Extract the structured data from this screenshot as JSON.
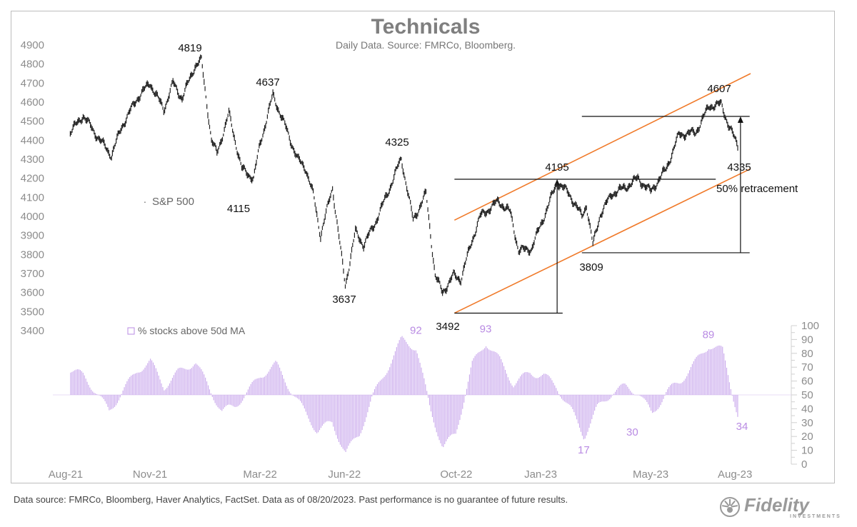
{
  "chart_data": [
    {
      "type": "line",
      "title": "Technicals",
      "subtitle": "Daily Data. Source: FMRCo, Bloomberg.",
      "series_name": "S&P 500",
      "ylim": [
        3400,
        4900
      ],
      "yticks": [
        3400,
        3500,
        3600,
        3700,
        3800,
        3900,
        4000,
        4100,
        4200,
        4300,
        4400,
        4500,
        4600,
        4700,
        4800,
        4900
      ],
      "x_ticks": [
        "Aug-21",
        "Nov-21",
        "Mar-22",
        "Jun-22",
        "Oct-22",
        "Jan-23",
        "May-23",
        "Aug-23"
      ],
      "x": [
        "2021-08-20",
        "2021-09-03",
        "2021-09-20",
        "2021-10-04",
        "2021-10-15",
        "2021-11-01",
        "2021-11-15",
        "2021-11-30",
        "2021-12-10",
        "2021-12-20",
        "2022-01-03",
        "2022-01-10",
        "2022-01-21",
        "2022-01-27",
        "2022-02-09",
        "2022-02-23",
        "2022-03-08",
        "2022-03-15",
        "2022-03-29",
        "2022-04-11",
        "2022-04-25",
        "2022-05-04",
        "2022-05-12",
        "2022-05-20",
        "2022-06-02",
        "2022-06-16",
        "2022-06-27",
        "2022-07-06",
        "2022-07-18",
        "2022-08-01",
        "2022-08-16",
        "2022-08-29",
        "2022-09-12",
        "2022-09-22",
        "2022-09-30",
        "2022-10-12",
        "2022-10-20",
        "2022-11-01",
        "2022-11-10",
        "2022-11-30",
        "2022-12-13",
        "2022-12-22",
        "2023-01-05",
        "2023-01-18",
        "2023-02-02",
        "2023-02-15",
        "2023-03-01",
        "2023-03-06",
        "2023-03-13",
        "2023-03-21",
        "2023-04-03",
        "2023-04-17",
        "2023-05-01",
        "2023-05-15",
        "2023-06-01",
        "2023-06-15",
        "2023-07-03",
        "2023-07-18",
        "2023-07-31",
        "2023-08-08",
        "2023-08-18"
      ],
      "values": [
        4440,
        4530,
        4410,
        4320,
        4470,
        4620,
        4700,
        4560,
        4700,
        4620,
        4790,
        4819,
        4400,
        4330,
        4540,
        4250,
        4200,
        4380,
        4637,
        4480,
        4300,
        4250,
        4115,
        3900,
        4150,
        3637,
        3920,
        3850,
        3960,
        4120,
        4305,
        3980,
        4120,
        3690,
        3600,
        3690,
        3670,
        3870,
        4000,
        4080,
        4020,
        3820,
        3830,
        3990,
        4180,
        4120,
        4000,
        4060,
        3850,
        4010,
        4120,
        4150,
        4200,
        4130,
        4250,
        4430,
        4440,
        4580,
        4588,
        4480,
        4370
      ],
      "annotations": [
        "4819",
        "4637",
        "4115",
        "3637",
        "4325",
        "3492",
        "4195",
        "3809",
        "4607",
        "4335",
        "50% retracement"
      ],
      "channel": {
        "upper": [
          [
            "2022-10-13",
            3980
          ],
          [
            "2023-09-01",
            4750
          ]
        ],
        "lower": [
          [
            "2022-10-13",
            3492
          ],
          [
            "2023-09-01",
            4250
          ]
        ]
      },
      "levels": [
        {
          "value": 4195,
          "from": "2022-10-13",
          "to": "2023-07-25"
        },
        {
          "value": 3492,
          "from": "2022-10-13",
          "to": "2023-02-08"
        },
        {
          "value": 4525,
          "from": "2023-03-01",
          "to": "2023-08-31"
        },
        {
          "value": 3809,
          "from": "2023-03-01",
          "to": "2023-08-31"
        }
      ],
      "arrows": [
        {
          "date": "2023-02-02",
          "from": 3492,
          "to": 4195
        },
        {
          "date": "2023-08-21",
          "from": 3809,
          "to": 4525
        }
      ]
    },
    {
      "type": "bar",
      "series_name": "% stocks above 50d MA",
      "ylim": [
        0,
        100
      ],
      "yticks": [
        0,
        10,
        20,
        30,
        40,
        50,
        60,
        70,
        80,
        90,
        100
      ],
      "baseline": 50,
      "x": [
        "2021-08-20",
        "2021-09-03",
        "2021-09-17",
        "2021-10-01",
        "2021-10-15",
        "2021-11-01",
        "2021-11-15",
        "2021-11-30",
        "2021-12-15",
        "2022-01-03",
        "2022-01-18",
        "2022-02-01",
        "2022-02-15",
        "2022-03-01",
        "2022-03-15",
        "2022-04-01",
        "2022-04-15",
        "2022-05-02",
        "2022-05-16",
        "2022-06-01",
        "2022-06-16",
        "2022-07-01",
        "2022-07-15",
        "2022-08-01",
        "2022-08-16",
        "2022-09-01",
        "2022-09-16",
        "2022-09-30",
        "2022-10-14",
        "2022-11-01",
        "2022-11-16",
        "2022-12-01",
        "2022-12-16",
        "2023-01-03",
        "2023-01-18",
        "2023-02-01",
        "2023-02-16",
        "2023-03-03",
        "2023-03-17",
        "2023-04-03",
        "2023-04-17",
        "2023-05-01",
        "2023-05-16",
        "2023-06-01",
        "2023-06-16",
        "2023-07-03",
        "2023-07-17",
        "2023-08-01",
        "2023-08-18"
      ],
      "values": [
        68,
        64,
        52,
        38,
        52,
        68,
        74,
        56,
        66,
        74,
        55,
        38,
        42,
        52,
        64,
        72,
        56,
        38,
        24,
        30,
        8,
        22,
        48,
        70,
        90,
        84,
        40,
        12,
        22,
        72,
        88,
        75,
        58,
        66,
        64,
        56,
        40,
        20,
        40,
        52,
        56,
        52,
        36,
        52,
        60,
        74,
        86,
        82,
        34
      ],
      "annotations": [
        "92",
        "93",
        "17",
        "30",
        "89",
        "34"
      ]
    }
  ],
  "footnote": "Data source: FMRCo, Bloomberg, Haver Analytics, FactSet. Data as of 08/20/2023. Past performance is no guarantee of future results.",
  "logo": {
    "name": "Fidelity",
    "sub": "INVESTMENTS"
  },
  "colors": {
    "price": "#222222",
    "channel": "#f07a2a",
    "breadth": "#c9a8ec",
    "breadth_label": "#b98be3",
    "axis_text": "#8c8c8c",
    "title": "#7f7f7f"
  }
}
